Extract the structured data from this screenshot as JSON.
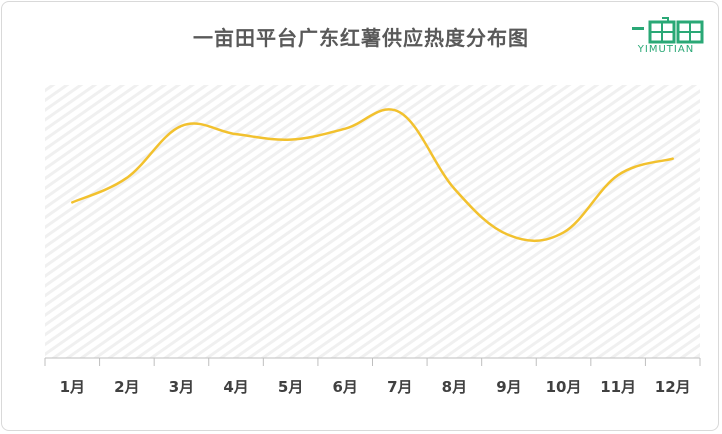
{
  "title": "一亩田平台广东红薯供应热度分布图",
  "logo": {
    "text": "YIMUTIAN",
    "mark_color": "#2aa876",
    "icon": "yimutian-logo-icon"
  },
  "chart_data": {
    "type": "line",
    "title": "一亩田平台广东红薯供应热度分布图",
    "categories": [
      "1月",
      "2月",
      "3月",
      "4月",
      "5月",
      "6月",
      "7月",
      "8月",
      "9月",
      "10月",
      "11月",
      "12月"
    ],
    "series": [
      {
        "values": [
          57,
          66,
          85,
          82,
          80,
          84,
          90,
          62,
          45,
          46,
          67,
          73
        ],
        "color": "#f2c12e"
      }
    ],
    "ylim": [
      0,
      100
    ],
    "xlabel": "",
    "ylabel": "",
    "grid": "diagonal-hatched background",
    "legend": "none",
    "y_ticks_shown": false
  }
}
